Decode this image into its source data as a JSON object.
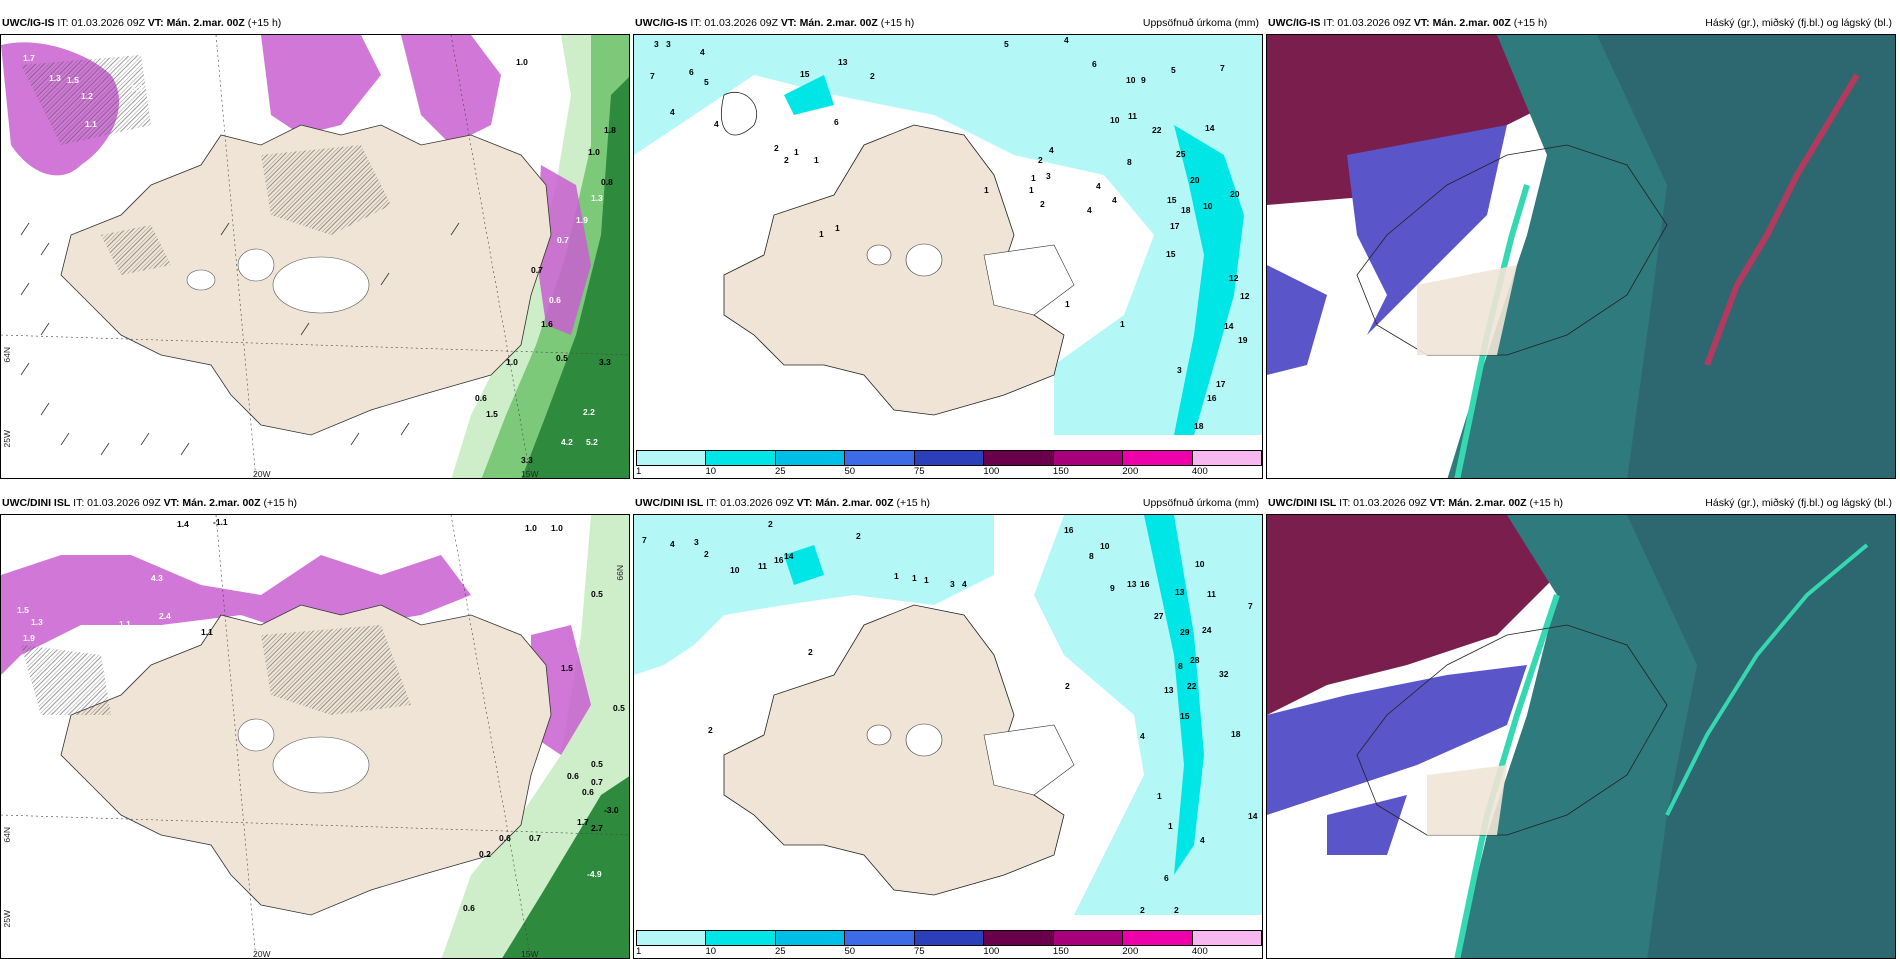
{
  "panels": {
    "p11": {
      "model": "UWC/IG-IS",
      "it": "IT: 01.03.2026 09Z",
      "vt_label": "VT:",
      "vt": "Mán. 2.mar. 00Z",
      "lead": "(+15 h)",
      "right": ""
    },
    "p12": {
      "model": "UWC/IG-IS",
      "it": "IT: 01.03.2026 09Z",
      "vt_label": "VT:",
      "vt": "Mán. 2.mar. 00Z",
      "lead": "(+15 h)",
      "right": "Uppsöfnuð úrkoma (mm)"
    },
    "p13": {
      "model": "UWC/IG-IS",
      "it": "IT: 01.03.2026 09Z",
      "vt_label": "VT:",
      "vt": "Mán. 2.mar. 00Z",
      "lead": "(+15 h)",
      "right": "Háský (gr.), miðský (fj.bl.) og lágský (bl.)"
    },
    "p21": {
      "model": "UWC/DINI ISL",
      "it": "IT: 01.03.2026 09Z",
      "vt_label": "VT:",
      "vt": "Mán. 2.mar. 00Z",
      "lead": "(+15 h)",
      "right": ""
    },
    "p22": {
      "model": "UWC/DINI ISL",
      "it": "IT: 01.03.2026 09Z",
      "vt_label": "VT:",
      "vt": "Mán. 2.mar. 00Z",
      "lead": "(+15 h)",
      "right": "Uppsöfnuð úrkoma (mm)"
    },
    "p23": {
      "model": "UWC/DINI ISL",
      "it": "IT: 01.03.2026 09Z",
      "vt_label": "VT:",
      "vt": "Mán. 2.mar. 00Z",
      "lead": "(+15 h)",
      "right": "Háský (gr.), miðský (fj.bl.) og lágský (bl.)"
    }
  },
  "axis_labels": {
    "lon_20w": "20W",
    "lon_15w": "15W",
    "lat_64n": "64N",
    "lat_66n": "66N",
    "lon_25w": "25W"
  },
  "colorbar": {
    "ticks": [
      "1",
      "10",
      "25",
      "50",
      "75",
      "100",
      "150",
      "200",
      "400"
    ],
    "colors": [
      "#b3f7f7",
      "#00e5e5",
      "#00bfe6",
      "#3d6be8",
      "#2a3fb8",
      "#6a004a",
      "#a8007a",
      "#ee00aa",
      "#f7b7ef"
    ]
  },
  "precip_top": [
    "3",
    "3",
    "4",
    "7",
    "6",
    "5",
    "4",
    "4",
    "15",
    "13",
    "2",
    "6",
    "1",
    "1",
    "2",
    "2",
    "5",
    "4",
    "6",
    "9",
    "5",
    "10",
    "7",
    "10",
    "11",
    "8",
    "4",
    "3",
    "22",
    "14",
    "25",
    "20",
    "20",
    "15",
    "18",
    "10",
    "17",
    "15",
    "12",
    "12",
    "14",
    "19",
    "17",
    "16",
    "18",
    "3",
    "1",
    "1",
    "2",
    "1",
    "1",
    "1",
    "2",
    "1",
    "1",
    "4",
    "4",
    "4"
  ],
  "precip_bottom": [
    "2",
    "7",
    "4",
    "3",
    "2",
    "10",
    "11",
    "16",
    "14",
    "2",
    "1",
    "1",
    "1",
    "3",
    "4",
    "16",
    "8",
    "10",
    "9",
    "13",
    "16",
    "10",
    "13",
    "11",
    "7",
    "27",
    "29",
    "24",
    "28",
    "32",
    "13",
    "22",
    "18",
    "15",
    "14",
    "2",
    "1",
    "6",
    "4",
    "2",
    "1",
    "4",
    "2",
    "8",
    "2",
    "2"
  ],
  "wind_top": [
    "1.7",
    "1.3",
    "1.5",
    "1.2",
    "3.9",
    "4.0",
    "1.1",
    "0.5",
    "1.0",
    "1.8",
    "1.0",
    "0.8",
    "1.3",
    "0.7",
    "0.6",
    "1.6",
    "0.5",
    "1.0",
    "3.3",
    "0.6",
    "1.5",
    "4.2",
    "5.2",
    "3.3",
    "2.2",
    "1.9",
    "0.7",
    "1.0",
    "1.5"
  ],
  "wind_bottom": [
    "1.4",
    "-1.1",
    "1.0",
    "1.0",
    "1.5",
    "1.3",
    "1.9",
    "1.1",
    "2.4",
    "4.3",
    "1.1",
    "0.5",
    "0.5",
    "1.5",
    "0.6",
    "0.7",
    "0.7",
    "0.6",
    "0.6",
    "0.5",
    "1.7",
    "2.7",
    "-3.0",
    "-4.9",
    "0.2",
    "0.6"
  ]
}
